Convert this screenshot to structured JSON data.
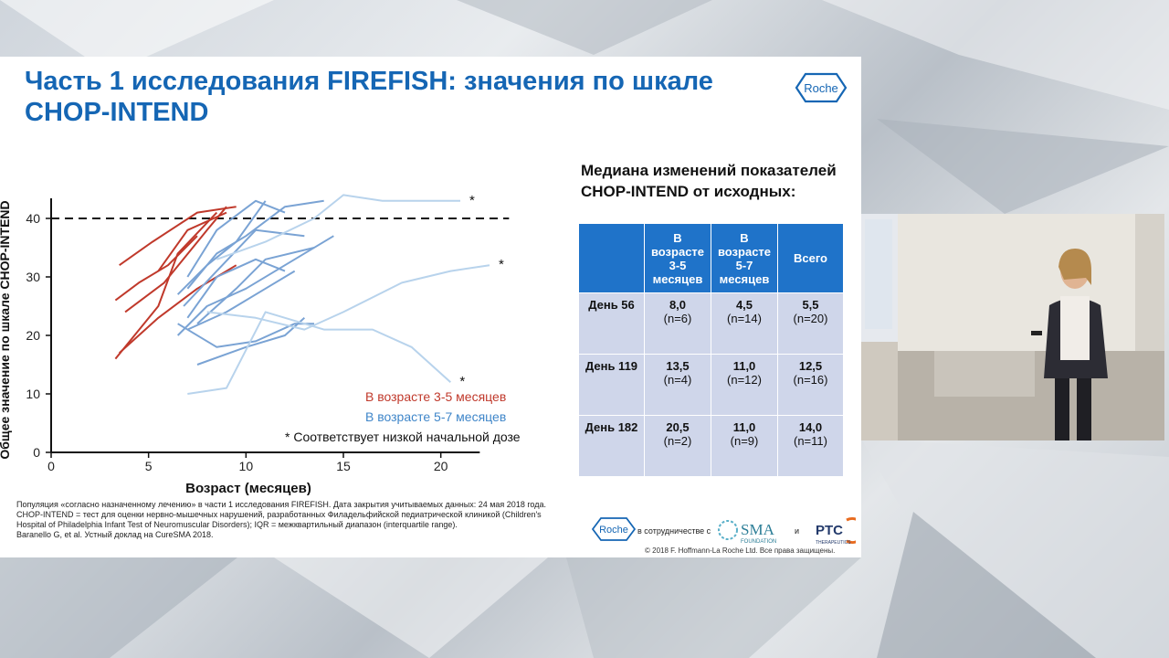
{
  "slide": {
    "title": "Часть 1 исследования FIREFISH: значения по шкале CHOP-INTEND",
    "logo_text": "Roche"
  },
  "chart_data": {
    "type": "line",
    "xlabel": "Возраст (месяцев)",
    "ylabel": "Общее значение по шкале CHOP-INTEND",
    "xlim": [
      0,
      24
    ],
    "ylim": [
      0,
      45
    ],
    "x_ticks": [
      "0",
      "5",
      "10",
      "15",
      "20"
    ],
    "y_ticks": [
      "0",
      "10",
      "20",
      "30",
      "40"
    ],
    "reference_line": {
      "y": 40,
      "style": "dashed"
    },
    "legend": [
      "В возрасте 3-5 месяцев",
      "В возрасте 5-7 месяцев",
      "* Соответствует низкой начальной дозе"
    ],
    "asterisk_marks": [
      "*",
      "*",
      "*"
    ],
    "colors": {
      "group_3_5": "#c0392b",
      "group_5_7": "#7aa3d4",
      "group_low": "#b8d3ec"
    },
    "series": [
      {
        "group": "3-5",
        "x": [
          3.5,
          5.2,
          7.5,
          9.5
        ],
        "y": [
          32,
          36,
          41,
          42
        ]
      },
      {
        "group": "3-5",
        "x": [
          3.3,
          4.5,
          6.0,
          7.5
        ],
        "y": [
          26,
          29,
          32,
          37
        ]
      },
      {
        "group": "3-5",
        "x": [
          3.8,
          5.8,
          8.0,
          9.0
        ],
        "y": [
          24,
          29,
          38,
          42
        ]
      },
      {
        "group": "3-5",
        "x": [
          3.3,
          5.5,
          6.5,
          8.5
        ],
        "y": [
          16,
          25,
          34,
          41
        ]
      },
      {
        "group": "3-5",
        "x": [
          3.5,
          5.5,
          7.5,
          9.5
        ],
        "y": [
          17,
          23,
          28,
          32
        ]
      },
      {
        "group": "3-5",
        "x": [
          5.5,
          7.0,
          9.0
        ],
        "y": [
          31,
          38,
          41
        ]
      },
      {
        "group": "5-7",
        "x": [
          7.0,
          8.5,
          10.5,
          12.0
        ],
        "y": [
          30,
          38,
          43,
          41
        ]
      },
      {
        "group": "5-7",
        "x": [
          6.5,
          8.0,
          9.5,
          11.0
        ],
        "y": [
          27,
          32,
          36,
          43
        ]
      },
      {
        "group": "5-7",
        "x": [
          6.8,
          8.5,
          10.5,
          13.0
        ],
        "y": [
          25,
          31,
          38,
          37
        ]
      },
      {
        "group": "5-7",
        "x": [
          7.5,
          9.5,
          11.0,
          13.5
        ],
        "y": [
          22,
          28,
          33,
          35
        ]
      },
      {
        "group": "5-7",
        "x": [
          6.5,
          8.0,
          10.0,
          12.0,
          14.5
        ],
        "y": [
          20,
          25,
          28,
          32,
          37
        ]
      },
      {
        "group": "5-7",
        "x": [
          7.0,
          8.5,
          10.5,
          12.0
        ],
        "y": [
          23,
          30,
          33,
          31
        ]
      },
      {
        "group": "5-7",
        "x": [
          7.0,
          9.0,
          11.0,
          12.5
        ],
        "y": [
          21,
          24,
          28,
          31
        ]
      },
      {
        "group": "5-7",
        "x": [
          7.5,
          10.0,
          12.0,
          13.0
        ],
        "y": [
          15,
          18,
          20,
          23
        ]
      },
      {
        "group": "5-7",
        "x": [
          6.5,
          8.5,
          10.5,
          12.5,
          13.5
        ],
        "y": [
          22,
          18,
          19,
          22,
          22
        ]
      },
      {
        "group": "5-7",
        "x": [
          7.0,
          8.5,
          10.0,
          12.0,
          14.0
        ],
        "y": [
          28,
          34,
          37,
          42,
          43
        ]
      },
      {
        "group": "low",
        "x": [
          8.5,
          11.0,
          13.5,
          15.0,
          17.0,
          21.0
        ],
        "y": [
          33,
          36,
          40,
          44,
          43,
          43
        ]
      },
      {
        "group": "low",
        "x": [
          8.0,
          10.5,
          13.0,
          15.0,
          18.0,
          20.5,
          22.5
        ],
        "y": [
          24,
          23,
          21,
          24,
          29,
          31,
          32
        ]
      },
      {
        "group": "low",
        "x": [
          7.0,
          9.0,
          11.0,
          14.0,
          16.5,
          18.5,
          20.5
        ],
        "y": [
          10,
          11,
          24,
          21,
          21,
          18,
          12
        ]
      }
    ]
  },
  "table": {
    "title": "Медиана изменений показателей CHOP-INTEND от исходных:",
    "headers": [
      "",
      "В возрасте 3-5 месяцев",
      "В возрасте 5-7 месяцев",
      "Всего"
    ],
    "rows": [
      {
        "label": "День 56",
        "cells": [
          {
            "v": "8,0",
            "n": "(n=6)"
          },
          {
            "v": "4,5",
            "n": "(n=14)"
          },
          {
            "v": "5,5",
            "n": "(n=20)"
          }
        ]
      },
      {
        "label": "День 119",
        "cells": [
          {
            "v": "13,5",
            "n": "(n=4)"
          },
          {
            "v": "11,0",
            "n": "(n=12)"
          },
          {
            "v": "12,5",
            "n": "(n=16)"
          }
        ]
      },
      {
        "label": "День 182",
        "cells": [
          {
            "v": "20,5",
            "n": "(n=2)"
          },
          {
            "v": "11,0",
            "n": "(n=9)"
          },
          {
            "v": "14,0",
            "n": "(n=11)"
          }
        ]
      }
    ]
  },
  "footnote": {
    "line1": "Популяция «согласно назначенному лечению» в части 1 исследования FIREFISH. Дата закрытия учитываемых данных: 24 мая 2018 года.",
    "line2": "CHOP-INTEND = тест для оценки нервно-мышечных нарушений, разработанных Филадельфийской педиатрической клиникой (Children's Hospital of Philadelphia Infant Test of Neuromuscular Disorders); IQR = межквартильный диапазон (interquartile range).",
    "line3": "Baranello G, et al. Устный доклад на CureSMA 2018."
  },
  "partners": {
    "with_text": "в сотрудничестве с",
    "sma_text": "SMA",
    "sma_sub": "FOUNDATION",
    "and_text": "и",
    "ptc_text": "PTC",
    "ptc_sub": "THERAPEUTICS"
  },
  "copyright": "© 2018 F. Hoffmann-La Roche Ltd. Все права защищены."
}
